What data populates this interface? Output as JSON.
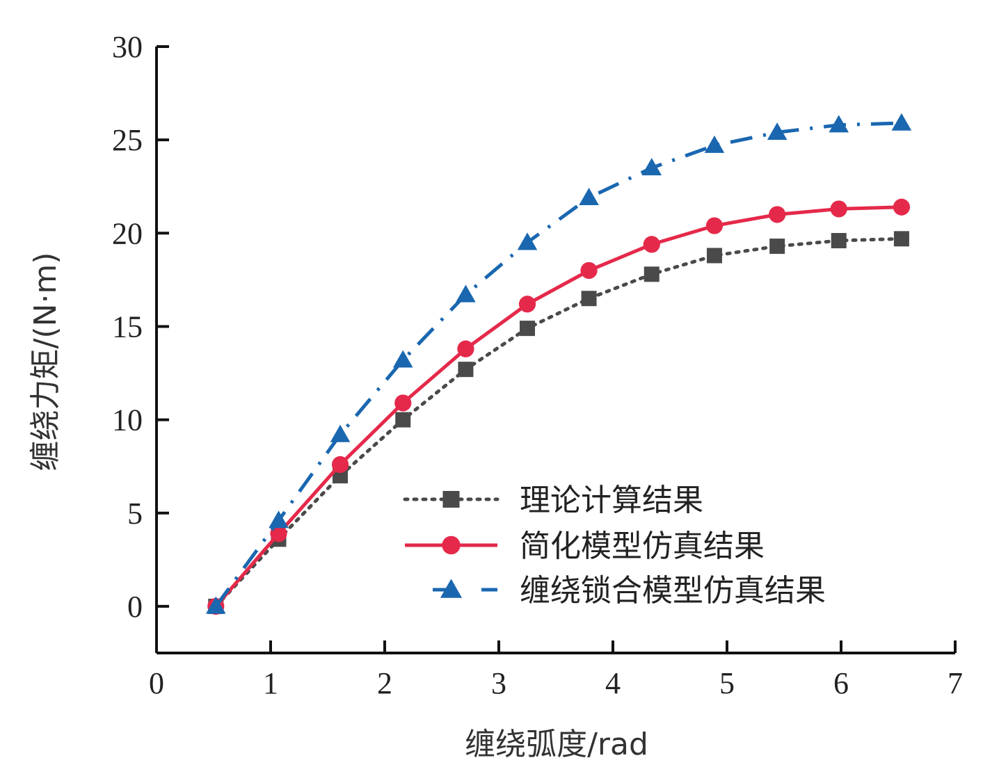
{
  "chart_data": {
    "type": "line",
    "title": "",
    "xlabel": "缠绕弧度/rad",
    "ylabel": "缠绕力矩/(N·m)",
    "xlim": [
      0,
      7
    ],
    "ylim": [
      -2.5,
      30
    ],
    "xticks": [
      0,
      1,
      2,
      3,
      4,
      5,
      6,
      7
    ],
    "yticks": [
      0,
      5,
      10,
      15,
      20,
      25,
      30
    ],
    "grid": false,
    "legend_position": "bottom-right",
    "x": [
      0.52,
      1.07,
      1.61,
      2.16,
      2.71,
      3.25,
      3.79,
      4.34,
      4.89,
      5.44,
      5.98,
      6.53
    ],
    "series": [
      {
        "name": "理论计算结果",
        "color": "#4a4a4a",
        "marker": "square",
        "line_style": "dotted",
        "values": [
          0.0,
          3.6,
          7.0,
          10.0,
          12.7,
          14.9,
          16.5,
          17.8,
          18.8,
          19.3,
          19.6,
          19.7
        ]
      },
      {
        "name": "简化模型仿真结果",
        "color": "#e5294a",
        "marker": "circle",
        "line_style": "solid",
        "values": [
          0.0,
          3.9,
          7.6,
          10.9,
          13.8,
          16.2,
          18.0,
          19.4,
          20.4,
          21.0,
          21.3,
          21.4
        ]
      },
      {
        "name": "缠绕锁合模型仿真结果",
        "color": "#1a67b0",
        "marker": "triangle",
        "line_style": "dash-dot",
        "values": [
          0.0,
          4.6,
          9.2,
          13.2,
          16.7,
          19.5,
          21.9,
          23.5,
          24.7,
          25.4,
          25.8,
          25.9
        ]
      }
    ]
  }
}
